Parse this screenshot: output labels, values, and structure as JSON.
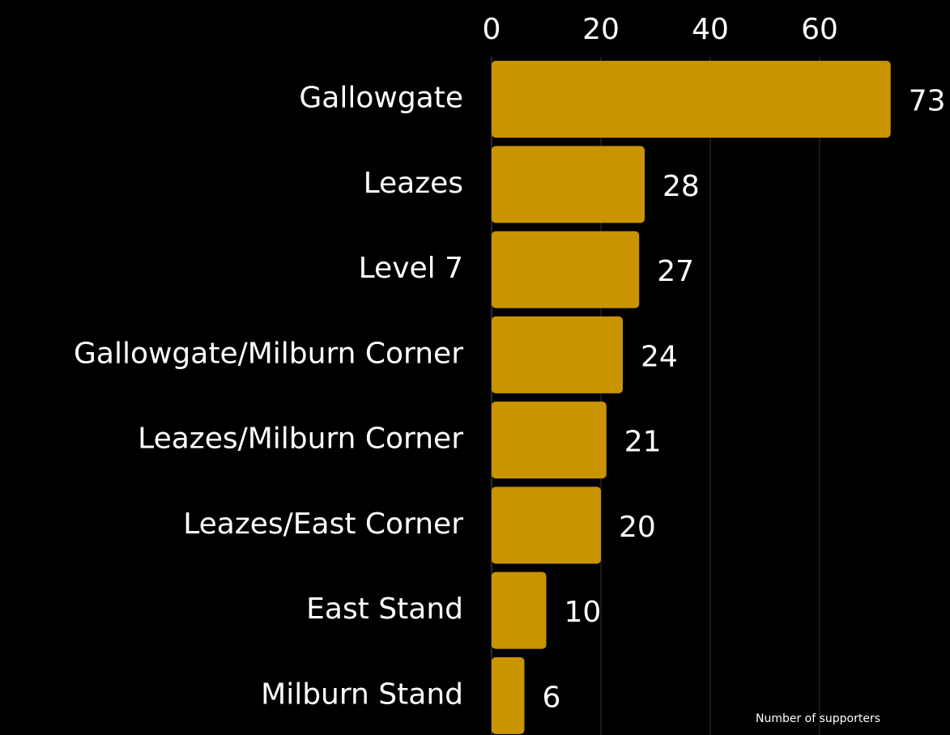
{
  "chart_data": {
    "type": "bar",
    "orientation": "horizontal",
    "x_label": "Number of supporters",
    "categories": [
      "Gallowgate",
      "Leazes",
      "Level 7",
      "Gallowgate/Milburn Corner",
      "Leazes/Milburn Corner",
      "Leazes/East Corner",
      "East Stand",
      "Milburn Stand"
    ],
    "values": [
      73,
      28,
      27,
      24,
      21,
      20,
      10,
      6
    ],
    "color": "#c99400",
    "xlim": [
      0,
      80
    ],
    "xticks": [
      0,
      20,
      40,
      60
    ],
    "grid": true
  }
}
